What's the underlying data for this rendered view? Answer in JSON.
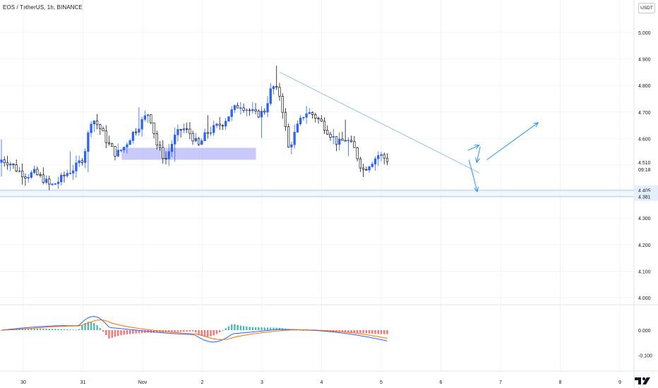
{
  "header": {
    "title": "EOS / TetherUS, 1h, BINANCE",
    "currency": "USDT"
  },
  "price_axis": {
    "ticks": [
      "5.000",
      "4.900",
      "4.800",
      "4.700",
      "4.600",
      "4.510",
      "4.300",
      "4.200",
      "4.100",
      "4.000"
    ],
    "current_price": "4.510",
    "countdown": "09:18",
    "level_labels": [
      "4.405",
      "4.381"
    ]
  },
  "macd_axis": {
    "ticks": [
      "0.000",
      "-0.100"
    ]
  },
  "time_axis": {
    "ticks": [
      "30",
      "31",
      "Nov",
      "2",
      "3",
      "4",
      "5",
      "6",
      "7",
      "8",
      "9"
    ]
  },
  "colors": {
    "up": "#2962ff",
    "down": "#131722",
    "trendline": "#90bff9",
    "arrow": "#2196f3",
    "zone": "#9c9cf8",
    "level": "#90bff9",
    "macd_line": "#2962ff",
    "signal_line": "#ff6d00",
    "hist_pos": "#26a69a",
    "hist_neg": "#ef5350",
    "grid": "#f0f3fa"
  },
  "chart_data": {
    "type": "candlestick",
    "title": "EOS / TetherUS, 1h, BINANCE",
    "y_range": [
      3.95,
      5.05
    ],
    "x_range_days": [
      "30",
      "9"
    ],
    "candles_ohlc_sampled": [
      [
        4.51,
        4.54,
        4.49,
        4.52
      ],
      [
        4.52,
        4.55,
        4.5,
        4.51
      ],
      [
        4.51,
        4.53,
        4.47,
        4.48
      ],
      [
        4.48,
        4.51,
        4.44,
        4.46
      ],
      [
        4.46,
        4.49,
        4.43,
        4.47
      ],
      [
        4.47,
        4.5,
        4.44,
        4.45
      ],
      [
        4.45,
        4.48,
        4.4,
        4.42
      ],
      [
        4.42,
        4.47,
        4.35,
        4.44
      ],
      [
        4.44,
        4.5,
        4.39,
        4.47
      ],
      [
        4.47,
        4.52,
        4.44,
        4.49
      ],
      [
        4.49,
        4.55,
        4.46,
        4.53
      ],
      [
        4.53,
        4.78,
        4.5,
        4.68
      ],
      [
        4.68,
        4.72,
        4.62,
        4.64
      ],
      [
        4.64,
        4.66,
        4.55,
        4.58
      ],
      [
        4.58,
        4.62,
        4.5,
        4.54
      ],
      [
        4.54,
        4.6,
        4.49,
        4.57
      ],
      [
        4.57,
        4.64,
        4.55,
        4.62
      ],
      [
        4.62,
        4.68,
        4.58,
        4.66
      ],
      [
        4.66,
        4.72,
        4.62,
        4.7
      ],
      [
        4.7,
        4.71,
        4.55,
        4.57
      ],
      [
        4.57,
        4.6,
        4.47,
        4.52
      ],
      [
        4.52,
        4.62,
        4.5,
        4.6
      ],
      [
        4.6,
        4.68,
        4.56,
        4.64
      ],
      [
        4.64,
        4.7,
        4.6,
        4.62
      ],
      [
        4.62,
        4.66,
        4.55,
        4.57
      ],
      [
        4.57,
        4.65,
        4.53,
        4.62
      ],
      [
        4.62,
        4.68,
        4.58,
        4.64
      ],
      [
        4.64,
        4.68,
        4.6,
        4.66
      ],
      [
        4.66,
        4.72,
        4.63,
        4.7
      ],
      [
        4.7,
        4.76,
        4.66,
        4.73
      ],
      [
        4.73,
        4.77,
        4.68,
        4.71
      ],
      [
        4.71,
        4.73,
        4.66,
        4.69
      ],
      [
        4.69,
        4.72,
        4.65,
        4.7
      ],
      [
        4.7,
        4.87,
        4.68,
        4.8
      ],
      [
        4.8,
        4.82,
        4.72,
        4.76
      ],
      [
        4.76,
        4.78,
        4.51,
        4.56
      ],
      [
        4.56,
        4.66,
        4.52,
        4.64
      ],
      [
        4.64,
        4.73,
        4.61,
        4.7
      ],
      [
        4.7,
        4.73,
        4.66,
        4.69
      ],
      [
        4.69,
        4.71,
        4.64,
        4.66
      ],
      [
        4.66,
        4.69,
        4.6,
        4.62
      ],
      [
        4.62,
        4.64,
        4.55,
        4.58
      ],
      [
        4.58,
        4.62,
        4.54,
        4.6
      ],
      [
        4.6,
        4.62,
        4.54,
        4.56
      ],
      [
        4.56,
        4.58,
        4.46,
        4.48
      ],
      [
        4.48,
        4.53,
        4.45,
        4.51
      ],
      [
        4.51,
        4.55,
        4.49,
        4.54
      ],
      [
        4.54,
        4.56,
        4.5,
        4.52
      ]
    ],
    "zone": {
      "x_days": [
        1.65,
        3.9
      ],
      "y": [
        4.52,
        4.565
      ]
    },
    "horizontal_levels": [
      4.405,
      4.381
    ],
    "macd_range": [
      -0.13,
      0.08
    ],
    "macd_axis_ticks": [
      0.0,
      -0.1
    ]
  }
}
